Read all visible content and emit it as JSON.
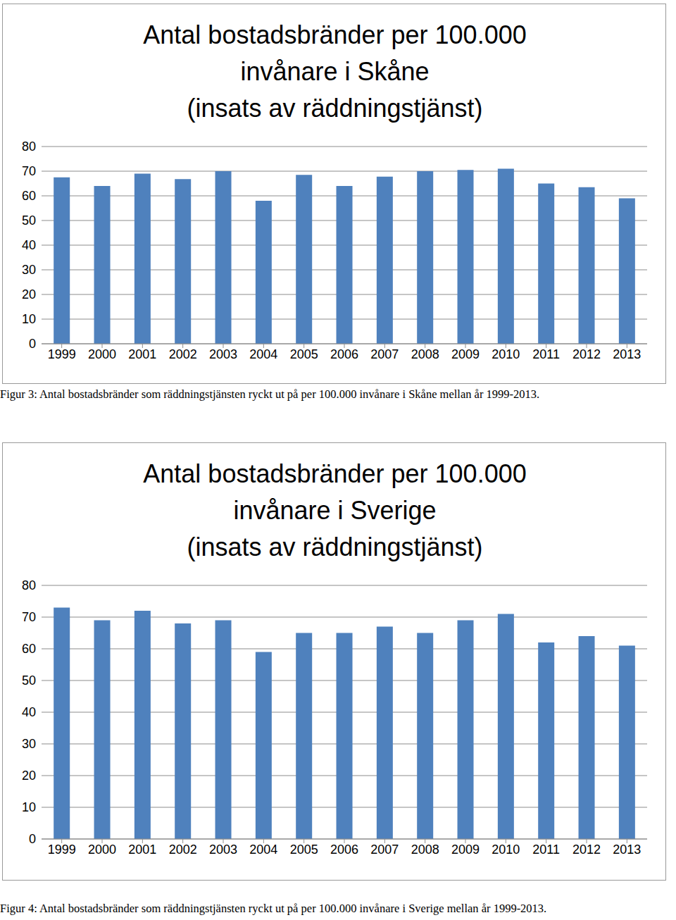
{
  "chart_data": [
    {
      "type": "bar",
      "title": "Antal bostadsbränder per 100.000\ninvånare i Skåne\n(insats av räddningstjänst)",
      "caption": "Figur 3: Antal bostadsbränder som räddningstjänsten ryckt ut på per 100.000 invånare i Skåne mellan år 1999-2013.",
      "categories": [
        "1999",
        "2000",
        "2001",
        "2002",
        "2003",
        "2004",
        "2005",
        "2006",
        "2007",
        "2008",
        "2009",
        "2010",
        "2011",
        "2012",
        "2013"
      ],
      "values": [
        67.5,
        64,
        69,
        66.8,
        70,
        58,
        68.5,
        64,
        67.8,
        70,
        70.5,
        71,
        65,
        63.5,
        59
      ],
      "color": "#4f81bd",
      "ylim": [
        0,
        80
      ],
      "yticks": [
        0,
        10,
        20,
        30,
        40,
        50,
        60,
        70,
        80
      ],
      "grid": true
    },
    {
      "type": "bar",
      "title": "Antal bostadsbränder per 100.000\ninvånare i Sverige\n(insats av räddningstjänst)",
      "caption": "Figur 4: Antal bostadsbränder som räddningstjänsten ryckt ut på per 100.000 invånare i Sverige mellan år 1999-2013.",
      "categories": [
        "1999",
        "2000",
        "2001",
        "2002",
        "2003",
        "2004",
        "2005",
        "2006",
        "2007",
        "2008",
        "2009",
        "2010",
        "2011",
        "2012",
        "2013"
      ],
      "values": [
        73,
        69,
        72,
        68,
        69,
        59,
        65,
        65,
        67,
        65,
        69,
        71,
        62,
        64,
        61
      ],
      "color": "#4f81bd",
      "ylim": [
        0,
        80
      ],
      "yticks": [
        0,
        10,
        20,
        30,
        40,
        50,
        60,
        70,
        80
      ],
      "grid": true
    }
  ]
}
